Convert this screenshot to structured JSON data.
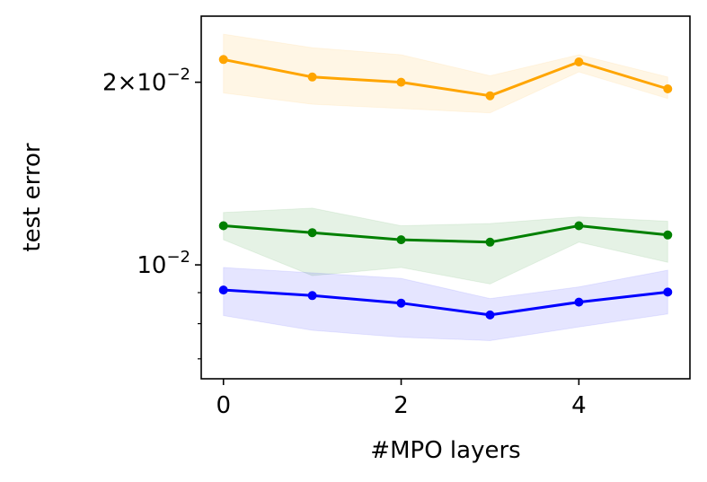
{
  "chart_data": {
    "type": "line",
    "xlabel": "#MPO layers",
    "ylabel": "test error",
    "x": [
      0,
      1,
      2,
      3,
      4,
      5
    ],
    "xlim": [
      -0.25,
      5.25
    ],
    "ylim": [
      0.00649,
      0.0257
    ],
    "yscale": "log",
    "grid": false,
    "xticks": [
      {
        "value": 0,
        "label": "0"
      },
      {
        "value": 2,
        "label": "2"
      },
      {
        "value": 4,
        "label": "4"
      }
    ],
    "yticks_major": [
      {
        "value": 0.02,
        "base": "2×10",
        "exp": "−2"
      },
      {
        "value": 0.01,
        "base": "10",
        "exp": "−2"
      }
    ],
    "yticks_minor": [
      0.006,
      0.007,
      0.008,
      0.009
    ],
    "series": [
      {
        "color": "#ffa500",
        "values": [
          0.0218,
          0.0204,
          0.02,
          0.019,
          0.0216,
          0.0195
        ],
        "lower": [
          0.0192,
          0.0184,
          0.0181,
          0.0178,
          0.0208,
          0.0188
        ],
        "upper": [
          0.024,
          0.0228,
          0.0222,
          0.0205,
          0.0222,
          0.0204
        ]
      },
      {
        "color": "#008000",
        "values": [
          0.0116,
          0.0113,
          0.011,
          0.0109,
          0.0116,
          0.0112
        ],
        "lower": [
          0.011,
          0.0096,
          0.0099,
          0.0093,
          0.0109,
          0.0101
        ],
        "upper": [
          0.0122,
          0.0124,
          0.0116,
          0.0117,
          0.012,
          0.0118
        ]
      },
      {
        "color": "#0000ff",
        "values": [
          0.00909,
          0.0089,
          0.00865,
          0.00827,
          0.00868,
          0.00902
        ],
        "lower": [
          0.00825,
          0.0078,
          0.0076,
          0.0075,
          0.0079,
          0.0083
        ],
        "upper": [
          0.0099,
          0.0097,
          0.0095,
          0.0088,
          0.0092,
          0.0098
        ]
      }
    ]
  }
}
